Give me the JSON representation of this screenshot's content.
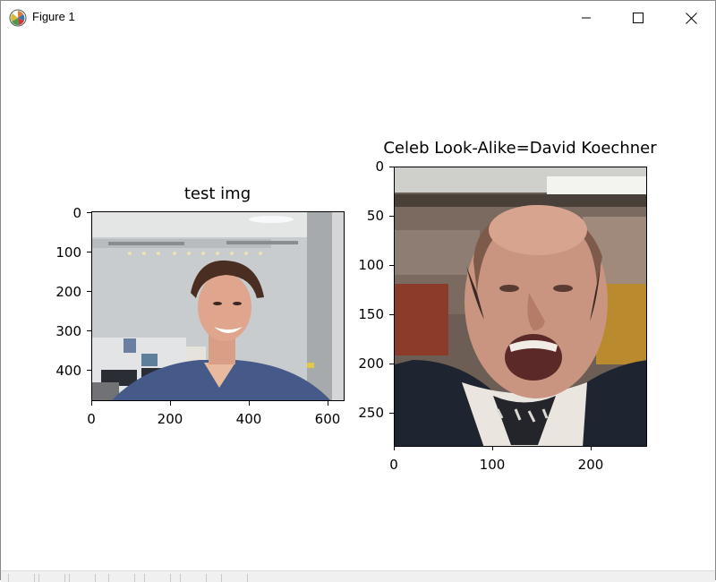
{
  "window": {
    "title": "Figure 1",
    "icons": {
      "app": "matplotlib-icon",
      "minimize": "minimize-icon",
      "maximize": "maximize-icon",
      "close": "close-icon"
    }
  },
  "left_axes": {
    "title": "test img",
    "x_ticks": [
      "0",
      "200",
      "400",
      "600"
    ],
    "y_ticks": [
      "0",
      "100",
      "200",
      "300",
      "400"
    ]
  },
  "right_axes": {
    "title": "Celeb Look-Alike=David Koechner",
    "x_ticks": [
      "0",
      "100",
      "200"
    ],
    "y_ticks": [
      "0",
      "50",
      "100",
      "150",
      "200",
      "250"
    ]
  },
  "toolbar": {
    "buttons": [
      "home-icon",
      "back-icon",
      "forward-icon",
      "pan-icon",
      "zoom-icon",
      "configure-icon",
      "save-icon"
    ]
  }
}
